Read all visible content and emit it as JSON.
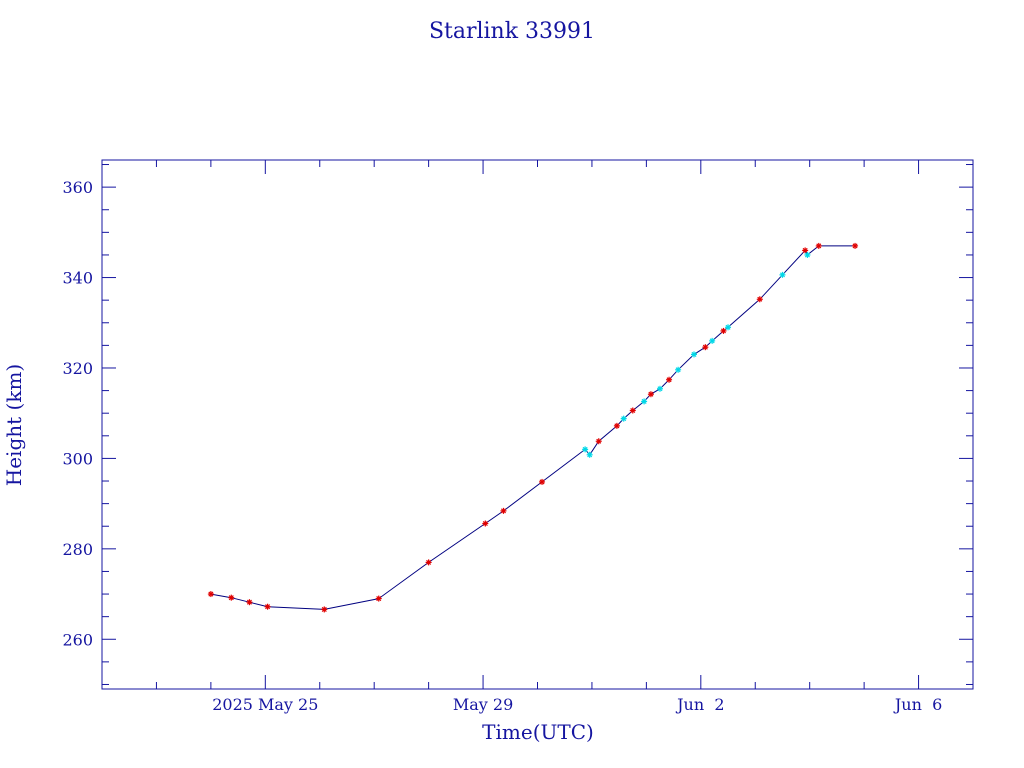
{
  "chart_data": {
    "type": "line",
    "title": "Starlink 33991",
    "xlabel": "Time(UTC)",
    "ylabel": "Height (km)",
    "xlim": [
      "2025-05-22",
      "2025-06-07"
    ],
    "ylim": [
      249,
      366
    ],
    "x_ticks": [
      {
        "date": "2025-05-25",
        "label": "2025 May 25"
      },
      {
        "date": "2025-05-29",
        "label": "May 29"
      },
      {
        "date": "2025-06-02",
        "label": "Jun  2"
      },
      {
        "date": "2025-06-06",
        "label": "Jun  6"
      }
    ],
    "y_ticks": [
      260,
      280,
      300,
      320,
      340,
      360
    ],
    "line_color": "#000080",
    "series": [
      {
        "marker": "asterisk",
        "color": "#e00000",
        "points": [
          [
            "2025-05-24T00:00Z",
            270.0
          ],
          [
            "2025-05-24T09:00Z",
            269.2
          ],
          [
            "2025-05-24T17:00Z",
            268.2
          ],
          [
            "2025-05-25T01:00Z",
            267.2
          ],
          [
            "2025-05-26T02:00Z",
            266.6
          ],
          [
            "2025-05-27T02:00Z",
            269.0
          ],
          [
            "2025-05-28T00:00Z",
            277.0
          ],
          [
            "2025-05-29T01:00Z",
            285.6
          ],
          [
            "2025-05-29T09:00Z",
            288.4
          ],
          [
            "2025-05-30T02:00Z",
            294.8
          ],
          [
            "2025-05-31T03:00Z",
            303.8
          ],
          [
            "2025-05-31T11:00Z",
            307.2
          ],
          [
            "2025-05-31T18:00Z",
            310.6
          ],
          [
            "2025-06-01T02:00Z",
            314.2
          ],
          [
            "2025-06-01T10:00Z",
            317.4
          ],
          [
            "2025-06-02T02:00Z",
            324.6
          ],
          [
            "2025-06-02T10:00Z",
            328.2
          ],
          [
            "2025-06-03T02:00Z",
            335.2
          ],
          [
            "2025-06-03T22:00Z",
            346.0
          ],
          [
            "2025-06-04T04:00Z",
            347.0
          ],
          [
            "2025-06-04T20:00Z",
            347.0
          ]
        ]
      },
      {
        "marker": "asterisk",
        "color": "#00d8e8",
        "points": [
          [
            "2025-05-30T21:00Z",
            302.0
          ],
          [
            "2025-05-30T23:00Z",
            300.8
          ],
          [
            "2025-05-31T14:00Z",
            308.8
          ],
          [
            "2025-05-31T23:00Z",
            312.6
          ],
          [
            "2025-06-01T06:00Z",
            315.4
          ],
          [
            "2025-06-01T14:00Z",
            319.6
          ],
          [
            "2025-06-01T21:00Z",
            323.0
          ],
          [
            "2025-06-02T05:00Z",
            326.0
          ],
          [
            "2025-06-02T12:00Z",
            329.0
          ],
          [
            "2025-06-03T12:00Z",
            340.6
          ],
          [
            "2025-06-03T23:00Z",
            345.0
          ]
        ]
      }
    ]
  }
}
